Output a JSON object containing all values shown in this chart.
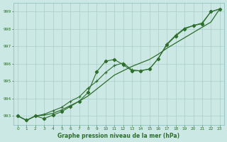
{
  "title": "Graphe pression niveau de la mer (hPa)",
  "xlim": [
    -0.5,
    23.5
  ],
  "ylim": [
    992.5,
    999.5
  ],
  "yticks": [
    993,
    994,
    995,
    996,
    997,
    998,
    999
  ],
  "xticks": [
    0,
    1,
    2,
    3,
    4,
    5,
    6,
    7,
    8,
    9,
    10,
    11,
    12,
    13,
    14,
    15,
    16,
    17,
    18,
    19,
    20,
    21,
    22,
    23
  ],
  "background_color": "#cce8e4",
  "grid_color": "#aaccc8",
  "line_color": "#2d6e2d",
  "line_straight": [
    993.0,
    992.75,
    993.0,
    993.05,
    993.15,
    993.35,
    993.6,
    993.85,
    994.15,
    994.55,
    994.95,
    995.35,
    995.6,
    995.85,
    996.05,
    996.25,
    996.55,
    996.9,
    997.2,
    997.5,
    997.8,
    998.1,
    998.4,
    999.15
  ],
  "line_markers": [
    993.0,
    992.75,
    993.0,
    992.85,
    993.05,
    993.25,
    993.55,
    993.85,
    994.35,
    995.55,
    996.15,
    996.25,
    995.95,
    995.6,
    995.6,
    995.7,
    996.3,
    997.1,
    997.6,
    998.0,
    998.2,
    998.3,
    999.0,
    999.15
  ],
  "line_cross": [
    993.0,
    992.75,
    993.0,
    993.1,
    993.3,
    993.5,
    993.85,
    994.1,
    994.6,
    995.0,
    995.5,
    995.9,
    996.05,
    995.65,
    995.6,
    995.7,
    996.3,
    997.15,
    997.65,
    998.05,
    998.2,
    998.35,
    999.0,
    999.15
  ]
}
